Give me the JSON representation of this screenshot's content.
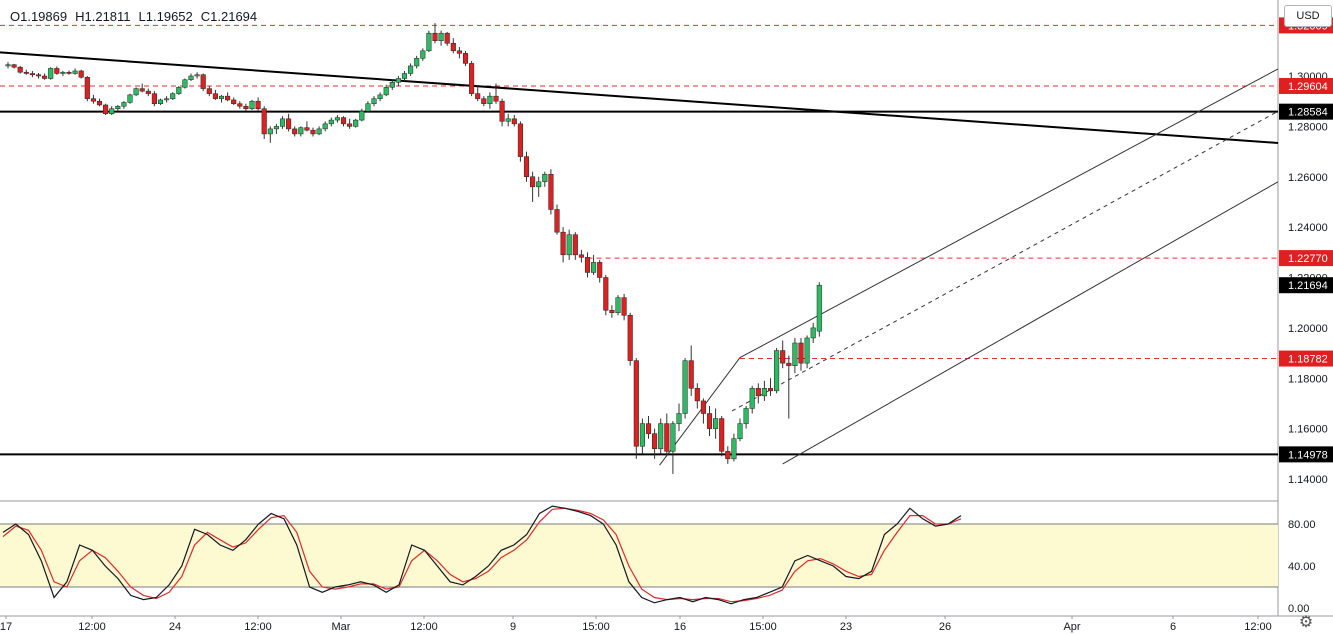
{
  "legend": {
    "open": "O1.19869",
    "high": "H1.21811",
    "low": "L1.19652",
    "close": "C1.21694"
  },
  "currency": "USD",
  "settings_icon": "gear-icon",
  "colors": {
    "up": "#26a69a",
    "down": "#ef5350",
    "candle_up": "#2bbb63",
    "candle_down": "#dd2121",
    "dashed_level": "#e03030",
    "stoch_k": "#131722",
    "stoch_d": "#e32a2a",
    "band": "#fdf9d0"
  },
  "chart_data": {
    "type": "candlestick",
    "symbol_pair": "EUR/USD-like",
    "ylim": [
      1.13,
      1.32
    ],
    "yticks": [
      "1.14000",
      "1.16000",
      "1.18000",
      "1.20000",
      "1.22000",
      "1.24000",
      "1.26000",
      "1.28000",
      "1.30000"
    ],
    "xticks": [
      "17",
      "12:00",
      "24",
      "12:00",
      "Mar",
      "12:00",
      "9",
      "15:00",
      "16",
      "15:00",
      "23",
      "26",
      "Apr",
      "6",
      "12:00"
    ],
    "price_labels": [
      {
        "text": "1.32009",
        "value": 1.32009,
        "style": "red"
      },
      {
        "text": "1.29604",
        "value": 1.29604,
        "style": "red"
      },
      {
        "text": "1.28584",
        "value": 1.28584,
        "style": "black"
      },
      {
        "text": "1.22770",
        "value": 1.2277,
        "style": "red"
      },
      {
        "text": "1.21694",
        "value": 1.21694,
        "style": "black"
      },
      {
        "text": "1.18782",
        "value": 1.18782,
        "style": "red"
      },
      {
        "text": "1.14978",
        "value": 1.14978,
        "style": "black"
      }
    ],
    "horizontal_lines": [
      {
        "value": 1.32009,
        "style": "dashed-red"
      },
      {
        "value": 1.29604,
        "style": "dashed-red"
      },
      {
        "value": 1.28584,
        "style": "solid-black"
      },
      {
        "value": 1.2277,
        "style": "dashed-red",
        "from_index": 95
      },
      {
        "value": 1.18782,
        "style": "dashed-red",
        "from_index": 120
      },
      {
        "value": 1.14978,
        "style": "solid-black"
      }
    ],
    "trendline": {
      "x1": 0,
      "y1": 1.3094,
      "x2": 222,
      "y2": 1.2734
    },
    "pitchfork": {
      "upper": {
        "x1": 120,
        "y1": 1.1882,
        "x2": 222,
        "y2": 1.3028
      },
      "median": {
        "x1": 120,
        "y1": 1.167,
        "x2": 222,
        "y2": 1.286
      },
      "lower": {
        "x1": 127,
        "y1": 1.146,
        "x2": 222,
        "y2": 1.258
      },
      "handle": {
        "x1": 106,
        "y1": 1.1455,
        "x2": 120,
        "y2": 1.1882
      }
    },
    "candles": [
      [
        1.304,
        1.3055,
        1.303,
        1.3045
      ],
      [
        1.3045,
        1.3048,
        1.303,
        1.3035
      ],
      [
        1.3035,
        1.304,
        1.301,
        1.3015
      ],
      [
        1.3015,
        1.3025,
        1.3005,
        1.301
      ],
      [
        1.301,
        1.302,
        1.2995,
        1.3005
      ],
      [
        1.3005,
        1.3012,
        1.299,
        1.3
      ],
      [
        1.3,
        1.301,
        1.2985,
        1.299
      ],
      [
        1.299,
        1.3035,
        1.2985,
        1.303
      ],
      [
        1.303,
        1.3038,
        1.3005,
        1.301
      ],
      [
        1.301,
        1.302,
        1.3,
        1.3015
      ],
      [
        1.3015,
        1.3022,
        1.3005,
        1.301
      ],
      [
        1.301,
        1.303,
        1.3005,
        1.302
      ],
      [
        1.302,
        1.3025,
        1.299,
        1.2995
      ],
      [
        1.2995,
        1.3,
        1.29,
        1.291
      ],
      [
        1.291,
        1.2925,
        1.289,
        1.29
      ],
      [
        1.29,
        1.291,
        1.288,
        1.2885
      ],
      [
        1.2885,
        1.289,
        1.2845,
        1.285
      ],
      [
        1.285,
        1.288,
        1.2845,
        1.287
      ],
      [
        1.287,
        1.2885,
        1.286,
        1.288
      ],
      [
        1.288,
        1.29,
        1.287,
        1.2895
      ],
      [
        1.2895,
        1.293,
        1.289,
        1.2925
      ],
      [
        1.2925,
        1.2955,
        1.292,
        1.295
      ],
      [
        1.295,
        1.297,
        1.2935,
        1.294
      ],
      [
        1.294,
        1.295,
        1.292,
        1.293
      ],
      [
        1.293,
        1.294,
        1.288,
        1.289
      ],
      [
        1.289,
        1.291,
        1.2885,
        1.2905
      ],
      [
        1.2905,
        1.292,
        1.2895,
        1.291
      ],
      [
        1.291,
        1.2935,
        1.2905,
        1.293
      ],
      [
        1.293,
        1.296,
        1.2925,
        1.2955
      ],
      [
        1.2955,
        1.299,
        1.295,
        1.2985
      ],
      [
        1.2985,
        1.301,
        1.298,
        1.3
      ],
      [
        1.3,
        1.3015,
        1.299,
        1.3005
      ],
      [
        1.3005,
        1.301,
        1.294,
        1.295
      ],
      [
        1.295,
        1.296,
        1.292,
        1.293
      ],
      [
        1.293,
        1.2945,
        1.2905,
        1.291
      ],
      [
        1.291,
        1.2925,
        1.2895,
        1.292
      ],
      [
        1.292,
        1.2935,
        1.29,
        1.2905
      ],
      [
        1.2905,
        1.2915,
        1.2885,
        1.289
      ],
      [
        1.289,
        1.29,
        1.287,
        1.288
      ],
      [
        1.288,
        1.289,
        1.286,
        1.287
      ],
      [
        1.287,
        1.2905,
        1.2865,
        1.29
      ],
      [
        1.29,
        1.2915,
        1.286,
        1.287
      ],
      [
        1.287,
        1.288,
        1.275,
        1.277
      ],
      [
        1.277,
        1.28,
        1.2735,
        1.279
      ],
      [
        1.279,
        1.281,
        1.277,
        1.28
      ],
      [
        1.28,
        1.284,
        1.279,
        1.283
      ],
      [
        1.283,
        1.285,
        1.278,
        1.279
      ],
      [
        1.279,
        1.28,
        1.276,
        1.277
      ],
      [
        1.277,
        1.28,
        1.276,
        1.2795
      ],
      [
        1.2795,
        1.282,
        1.278,
        1.2785
      ],
      [
        1.2785,
        1.2795,
        1.276,
        1.277
      ],
      [
        1.277,
        1.28,
        1.2765,
        1.279
      ],
      [
        1.279,
        1.282,
        1.278,
        1.281
      ],
      [
        1.281,
        1.2835,
        1.28,
        1.2825
      ],
      [
        1.2825,
        1.2845,
        1.2815,
        1.2835
      ],
      [
        1.2835,
        1.284,
        1.28,
        1.281
      ],
      [
        1.281,
        1.283,
        1.279,
        1.28
      ],
      [
        1.28,
        1.283,
        1.2795,
        1.2825
      ],
      [
        1.2825,
        1.287,
        1.282,
        1.286
      ],
      [
        1.286,
        1.29,
        1.2855,
        1.289
      ],
      [
        1.289,
        1.292,
        1.288,
        1.291
      ],
      [
        1.291,
        1.2935,
        1.29,
        1.2925
      ],
      [
        1.2925,
        1.2965,
        1.292,
        1.2955
      ],
      [
        1.2955,
        1.2985,
        1.2945,
        1.2975
      ],
      [
        1.2975,
        1.3,
        1.296,
        1.299
      ],
      [
        1.299,
        1.302,
        1.298,
        1.301
      ],
      [
        1.301,
        1.305,
        1.3,
        1.304
      ],
      [
        1.304,
        1.308,
        1.303,
        1.307
      ],
      [
        1.307,
        1.311,
        1.306,
        1.31
      ],
      [
        1.31,
        1.318,
        1.3095,
        1.317
      ],
      [
        1.317,
        1.321,
        1.313,
        1.314
      ],
      [
        1.314,
        1.318,
        1.312,
        1.317
      ],
      [
        1.317,
        1.3175,
        1.312,
        1.313
      ],
      [
        1.313,
        1.315,
        1.309,
        1.31
      ],
      [
        1.31,
        1.3115,
        1.307,
        1.309
      ],
      [
        1.309,
        1.31,
        1.304,
        1.305
      ],
      [
        1.305,
        1.306,
        1.292,
        1.293
      ],
      [
        1.293,
        1.296,
        1.29,
        1.291
      ],
      [
        1.291,
        1.292,
        1.288,
        1.289
      ],
      [
        1.289,
        1.2935,
        1.287,
        1.292
      ],
      [
        1.292,
        1.297,
        1.289,
        1.29
      ],
      [
        1.29,
        1.291,
        1.28,
        1.282
      ],
      [
        1.282,
        1.285,
        1.28,
        1.283
      ],
      [
        1.283,
        1.2845,
        1.28,
        1.281
      ],
      [
        1.281,
        1.282,
        1.266,
        1.268
      ],
      [
        1.268,
        1.27,
        1.258,
        1.26
      ],
      [
        1.26,
        1.262,
        1.25,
        1.256
      ],
      [
        1.256,
        1.26,
        1.252,
        1.258
      ],
      [
        1.258,
        1.262,
        1.256,
        1.261
      ],
      [
        1.261,
        1.263,
        1.245,
        1.247
      ],
      [
        1.247,
        1.249,
        1.237,
        1.238
      ],
      [
        1.238,
        1.24,
        1.226,
        1.229
      ],
      [
        1.229,
        1.239,
        1.227,
        1.237
      ],
      [
        1.237,
        1.238,
        1.227,
        1.229
      ],
      [
        1.229,
        1.231,
        1.226,
        1.228
      ],
      [
        1.228,
        1.23,
        1.22,
        1.222
      ],
      [
        1.222,
        1.229,
        1.221,
        1.226
      ],
      [
        1.226,
        1.227,
        1.218,
        1.22
      ],
      [
        1.22,
        1.221,
        1.205,
        1.207
      ],
      [
        1.207,
        1.209,
        1.204,
        1.206
      ],
      [
        1.206,
        1.213,
        1.205,
        1.212
      ],
      [
        1.212,
        1.2135,
        1.203,
        1.205
      ],
      [
        1.205,
        1.206,
        1.185,
        1.187
      ],
      [
        1.187,
        1.188,
        1.148,
        1.153
      ],
      [
        1.153,
        1.164,
        1.15,
        1.162
      ],
      [
        1.162,
        1.165,
        1.156,
        1.158
      ],
      [
        1.158,
        1.16,
        1.148,
        1.152
      ],
      [
        1.152,
        1.164,
        1.15,
        1.162
      ],
      [
        1.162,
        1.166,
        1.149,
        1.151
      ],
      [
        1.151,
        1.163,
        1.142,
        1.162
      ],
      [
        1.162,
        1.17,
        1.159,
        1.166
      ],
      [
        1.166,
        1.188,
        1.164,
        1.187
      ],
      [
        1.187,
        1.193,
        1.173,
        1.176
      ],
      [
        1.176,
        1.178,
        1.168,
        1.171
      ],
      [
        1.171,
        1.172,
        1.162,
        1.166
      ],
      [
        1.166,
        1.169,
        1.157,
        1.16
      ],
      [
        1.16,
        1.168,
        1.156,
        1.164
      ],
      [
        1.164,
        1.165,
        1.149,
        1.151
      ],
      [
        1.151,
        1.153,
        1.146,
        1.148
      ],
      [
        1.148,
        1.158,
        1.147,
        1.156
      ],
      [
        1.156,
        1.164,
        1.155,
        1.162
      ],
      [
        1.162,
        1.169,
        1.16,
        1.168
      ],
      [
        1.168,
        1.177,
        1.166,
        1.176
      ],
      [
        1.176,
        1.178,
        1.17,
        1.173
      ],
      [
        1.173,
        1.179,
        1.171,
        1.176
      ],
      [
        1.176,
        1.18,
        1.173,
        1.175
      ],
      [
        1.175,
        1.192,
        1.174,
        1.191
      ],
      [
        1.191,
        1.195,
        1.184,
        1.186
      ],
      [
        1.186,
        1.189,
        1.164,
        1.185
      ],
      [
        1.185,
        1.196,
        1.182,
        1.194
      ],
      [
        1.194,
        1.196,
        1.183,
        1.186
      ],
      [
        1.186,
        1.197,
        1.184,
        1.196
      ],
      [
        1.196,
        1.202,
        1.194,
        1.2
      ],
      [
        1.19869,
        1.21811,
        1.19652,
        1.21694
      ]
    ],
    "stochastic": {
      "ylim": [
        0,
        100
      ],
      "yticks": [
        "0.00",
        "40.00",
        "80.00"
      ],
      "band": [
        20,
        80
      ],
      "k": [
        72,
        80,
        70,
        45,
        10,
        25,
        60,
        55,
        40,
        28,
        12,
        8,
        10,
        22,
        40,
        75,
        70,
        60,
        55,
        65,
        80,
        90,
        85,
        60,
        20,
        15,
        20,
        22,
        25,
        22,
        15,
        22,
        60,
        55,
        40,
        25,
        22,
        30,
        40,
        55,
        60,
        70,
        90,
        97,
        95,
        92,
        88,
        80,
        60,
        25,
        10,
        5,
        8,
        10,
        6,
        10,
        8,
        4,
        8,
        10,
        15,
        20,
        45,
        50,
        45,
        40,
        30,
        28,
        35,
        70,
        80,
        95,
        85,
        78,
        80,
        88
      ],
      "d": [
        68,
        78,
        74,
        55,
        25,
        20,
        45,
        55,
        48,
        35,
        20,
        12,
        9,
        15,
        30,
        60,
        72,
        65,
        58,
        62,
        75,
        86,
        88,
        72,
        35,
        20,
        18,
        20,
        23,
        23,
        18,
        20,
        45,
        55,
        45,
        32,
        25,
        28,
        35,
        48,
        55,
        65,
        82,
        94,
        95,
        93,
        90,
        84,
        70,
        40,
        18,
        10,
        8,
        9,
        8,
        9,
        9,
        6,
        7,
        9,
        12,
        17,
        35,
        45,
        47,
        42,
        35,
        30,
        32,
        55,
        72,
        88,
        88,
        80,
        80,
        85
      ]
    }
  }
}
